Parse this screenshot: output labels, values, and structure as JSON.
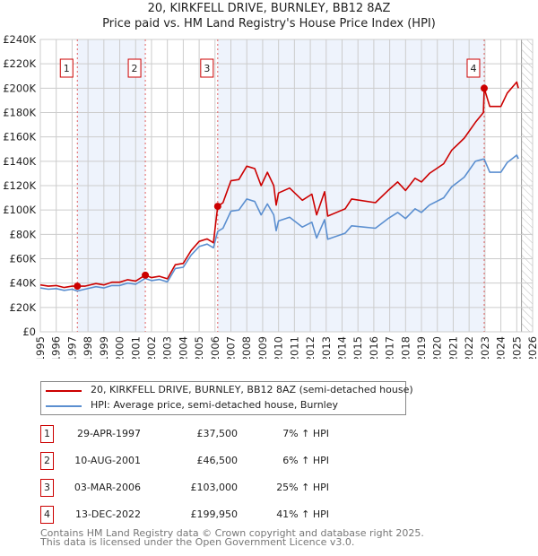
{
  "chart_data": {
    "type": "line",
    "title": "20, KIRKFELL DRIVE, BURNLEY, BB12 8AZ",
    "subtitle": "Price paid vs. HM Land Registry's House Price Index (HPI)",
    "xlim": [
      1995,
      2026
    ],
    "ylim": [
      0,
      240000
    ],
    "x_ticks": [
      "1995",
      "1996",
      "1997",
      "1998",
      "1999",
      "2000",
      "2001",
      "2002",
      "2003",
      "2004",
      "2005",
      "2006",
      "2007",
      "2008",
      "2009",
      "2010",
      "2011",
      "2012",
      "2013",
      "2014",
      "2015",
      "2016",
      "2017",
      "2018",
      "2019",
      "2020",
      "2021",
      "2022",
      "2023",
      "2024",
      "2025",
      "2026"
    ],
    "y_ticks": [
      {
        "value": 0,
        "label": "£0"
      },
      {
        "value": 20000,
        "label": "£20K"
      },
      {
        "value": 40000,
        "label": "£40K"
      },
      {
        "value": 60000,
        "label": "£60K"
      },
      {
        "value": 80000,
        "label": "£80K"
      },
      {
        "value": 100000,
        "label": "£100K"
      },
      {
        "value": 120000,
        "label": "£120K"
      },
      {
        "value": 140000,
        "label": "£140K"
      },
      {
        "value": 160000,
        "label": "£160K"
      },
      {
        "value": 180000,
        "label": "£180K"
      },
      {
        "value": 200000,
        "label": "£200K"
      },
      {
        "value": 220000,
        "label": "£220K"
      },
      {
        "value": 240000,
        "label": "£240K"
      }
    ],
    "grid": true,
    "legend_placement": "below",
    "series": [
      {
        "name": "20, KIRKFELL DRIVE, BURNLEY, BB12 8AZ (semi-detached house)",
        "color": "#cc0000",
        "x": [
          1995,
          1995.5,
          1996,
          1996.5,
          1997,
          1997.33,
          1997.8,
          1998.5,
          1999,
          1999.5,
          2000,
          2000.5,
          2001,
          2001.6,
          2002,
          2002.5,
          2003,
          2003.5,
          2004,
          2004.5,
          2005,
          2005.5,
          2005.9,
          2006.17,
          2006.5,
          2007,
          2007.5,
          2008,
          2008.5,
          2008.9,
          2009.3,
          2009.7,
          2009.85,
          2010,
          2010.7,
          2011.5,
          2012.1,
          2012.4,
          2012.9,
          2013.1,
          2014.2,
          2014.6,
          2016.1,
          2016.9,
          2017.5,
          2018,
          2018.6,
          2019,
          2019.5,
          2020.4,
          2020.9,
          2021.7,
          2022.4,
          2022.9,
          2022.95,
          2023.3,
          2024,
          2024.4,
          2025,
          2025.1
        ],
        "y": [
          38500,
          37500,
          38000,
          36400,
          37500,
          37500,
          37500,
          39600,
          38500,
          40700,
          40700,
          42800,
          41700,
          46500,
          44500,
          45600,
          43500,
          55100,
          56200,
          66800,
          74200,
          76300,
          73100,
          103000,
          106000,
          124000,
          125000,
          136000,
          134000,
          120000,
          131000,
          120000,
          104000,
          114000,
          118000,
          108000,
          113000,
          96000,
          115000,
          95000,
          101000,
          109000,
          106000,
          116000,
          123000,
          116000,
          126000,
          123000,
          130000,
          138000,
          149000,
          159000,
          172000,
          180000,
          199950,
          185000,
          185000,
          196000,
          205000,
          200000
        ]
      },
      {
        "name": "HPI: Average price, semi-detached house, Burnley",
        "color": "#5b8fd0",
        "x": [
          1995,
          1995.5,
          1996,
          1996.5,
          1997,
          1997.33,
          1997.8,
          1998.5,
          1999,
          1999.5,
          2000,
          2000.5,
          2001,
          2001.6,
          2002,
          2002.5,
          2003,
          2003.5,
          2004,
          2004.5,
          2005,
          2005.5,
          2005.9,
          2006.17,
          2006.5,
          2007,
          2007.5,
          2008,
          2008.5,
          2008.9,
          2009.3,
          2009.7,
          2009.85,
          2010,
          2010.7,
          2011.5,
          2012.1,
          2012.4,
          2012.9,
          2013.1,
          2014.2,
          2014.6,
          2016.1,
          2016.9,
          2017.5,
          2018,
          2018.6,
          2019,
          2019.5,
          2020.4,
          2020.9,
          2021.7,
          2022.4,
          2022.9,
          2022.95,
          2023.3,
          2024,
          2024.4,
          2025,
          2025.1
        ],
        "y": [
          36000,
          35000,
          35500,
          34000,
          35000,
          33500,
          35000,
          37000,
          36000,
          38000,
          38000,
          40000,
          39000,
          43800,
          42000,
          43000,
          41000,
          52000,
          53000,
          63000,
          70000,
          72000,
          69000,
          82400,
          85000,
          99000,
          100000,
          109000,
          107000,
          96000,
          105000,
          96000,
          83000,
          91000,
          94000,
          86000,
          90000,
          77000,
          92000,
          76000,
          81000,
          87000,
          85000,
          93000,
          98000,
          93000,
          101000,
          98000,
          104000,
          110000,
          119000,
          127000,
          140000,
          141800,
          141800,
          131000,
          131000,
          139000,
          145000,
          142000
        ]
      }
    ],
    "sales": [
      {
        "label": "1",
        "x": 1997.33,
        "date": "29-APR-1997",
        "price": 37500,
        "price_text": "£37,500",
        "hpi_text": "7% ↑ HPI"
      },
      {
        "label": "2",
        "x": 2001.61,
        "date": "10-AUG-2001",
        "price": 46500,
        "price_text": "£46,500",
        "hpi_text": "6% ↑ HPI"
      },
      {
        "label": "3",
        "x": 2006.17,
        "date": "03-MAR-2006",
        "price": 103000,
        "price_text": "£103,000",
        "hpi_text": "25% ↑ HPI"
      },
      {
        "label": "4",
        "x": 2022.95,
        "date": "13-DEC-2022",
        "price": 199950,
        "price_text": "£199,950",
        "hpi_text": "41% ↑ HPI"
      }
    ],
    "forecast_start": 2025.3
  },
  "footer": {
    "line1": "Contains HM Land Registry data © Crown copyright and database right 2025.",
    "line2": "This data is licensed under the Open Government Licence v3.0."
  }
}
